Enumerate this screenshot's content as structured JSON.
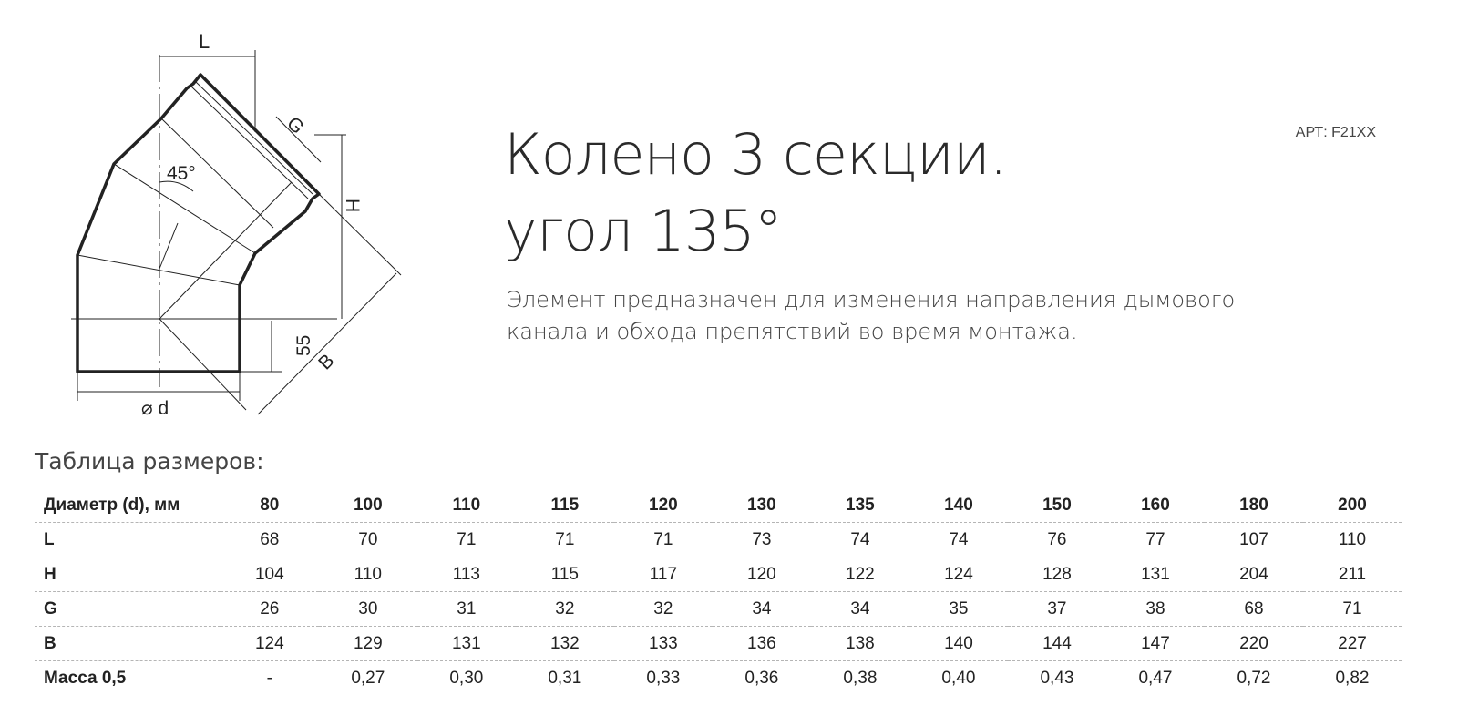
{
  "product": {
    "title_line1": "Колено 3 секции.",
    "title_line2": "угол 135°",
    "article": "АРТ: F21XX",
    "description_line1": "Элемент предназначен для изменения направления дымового",
    "description_line2": "канала и обхода препятствий во время монтажа."
  },
  "drawing": {
    "label_L": "L",
    "label_G": "G",
    "label_H": "H",
    "label_B": "B",
    "label_angle": "45°",
    "label_55": "55",
    "label_d": "⌀ d"
  },
  "table": {
    "caption": "Таблица размеров:",
    "rows": [
      {
        "label": "Диаметр (d), мм",
        "values": [
          "80",
          "100",
          "110",
          "115",
          "120",
          "130",
          "135",
          "140",
          "150",
          "160",
          "180",
          "200"
        ]
      },
      {
        "label": "L",
        "values": [
          "68",
          "70",
          "71",
          "71",
          "71",
          "73",
          "74",
          "74",
          "76",
          "77",
          "107",
          "110"
        ]
      },
      {
        "label": "H",
        "values": [
          "104",
          "110",
          "113",
          "115",
          "117",
          "120",
          "122",
          "124",
          "128",
          "131",
          "204",
          "211"
        ]
      },
      {
        "label": "G",
        "values": [
          "26",
          "30",
          "31",
          "32",
          "32",
          "34",
          "34",
          "35",
          "37",
          "38",
          "68",
          "71"
        ]
      },
      {
        "label": "B",
        "values": [
          "124",
          "129",
          "131",
          "132",
          "133",
          "136",
          "138",
          "140",
          "144",
          "147",
          "220",
          "227"
        ]
      },
      {
        "label": "Масса 0,5",
        "values": [
          "-",
          "0,27",
          "0,30",
          "0,31",
          "0,33",
          "0,36",
          "0,38",
          "0,40",
          "0,43",
          "0,47",
          "0,72",
          "0,82"
        ]
      }
    ]
  }
}
